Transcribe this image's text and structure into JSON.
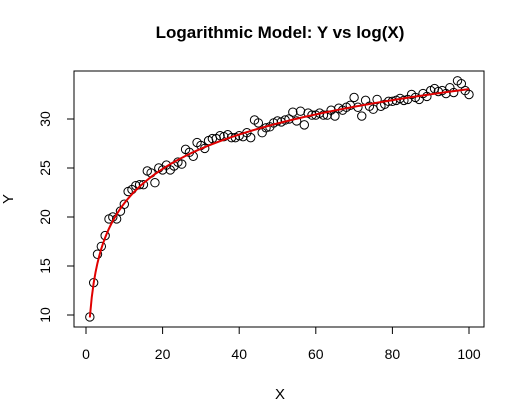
{
  "chart_data": {
    "type": "scatter",
    "title": "Logarithmic Model: Y vs log(X)",
    "xlabel": "X",
    "ylabel": "Y",
    "xlim": [
      0,
      100
    ],
    "ylim": [
      10,
      34
    ],
    "x_ticks": [
      0,
      20,
      40,
      60,
      80,
      100
    ],
    "y_ticks": [
      10,
      15,
      20,
      25,
      30
    ],
    "grid": false,
    "legend": "none",
    "series": [
      {
        "marker": "open-circle",
        "color": "#000000",
        "x": [
          1,
          2,
          3,
          4,
          5,
          6,
          7,
          8,
          9,
          10,
          11,
          12,
          13,
          14,
          15,
          16,
          17,
          18,
          19,
          20,
          21,
          22,
          23,
          24,
          25,
          26,
          27,
          28,
          29,
          30,
          31,
          32,
          33,
          34,
          35,
          36,
          37,
          38,
          39,
          40,
          41,
          42,
          43,
          44,
          45,
          46,
          47,
          48,
          49,
          50,
          51,
          52,
          53,
          54,
          55,
          56,
          57,
          58,
          59,
          60,
          61,
          62,
          63,
          64,
          65,
          66,
          67,
          68,
          69,
          70,
          71,
          72,
          73,
          74,
          75,
          76,
          77,
          78,
          79,
          80,
          81,
          82,
          83,
          84,
          85,
          86,
          87,
          88,
          89,
          90,
          91,
          92,
          93,
          94,
          95,
          96,
          97,
          98,
          99,
          100
        ],
        "y": [
          9.8,
          13.3,
          16.2,
          17.0,
          18.1,
          19.8,
          20.0,
          19.8,
          20.6,
          21.3,
          22.6,
          22.8,
          23.2,
          23.3,
          23.3,
          24.7,
          24.5,
          23.5,
          25.0,
          24.8,
          25.3,
          24.8,
          25.2,
          25.6,
          25.4,
          26.9,
          26.6,
          26.2,
          27.6,
          27.3,
          27.0,
          27.8,
          28.0,
          28.0,
          28.3,
          28.2,
          28.4,
          28.1,
          28.1,
          28.3,
          28.2,
          28.6,
          28.1,
          29.9,
          29.6,
          28.6,
          29.1,
          29.2,
          29.6,
          29.8,
          29.7,
          29.9,
          30.0,
          30.7,
          29.8,
          30.8,
          29.4,
          30.6,
          30.4,
          30.4,
          30.6,
          30.4,
          30.4,
          30.9,
          30.3,
          31.1,
          30.9,
          31.2,
          31.4,
          32.2,
          31.2,
          30.3,
          31.9,
          31.3,
          31.0,
          32.0,
          31.3,
          31.5,
          31.8,
          31.8,
          31.9,
          32.1,
          31.9,
          32.0,
          32.5,
          32.2,
          32.0,
          32.6,
          32.3,
          32.9,
          33.1,
          32.8,
          32.9,
          32.6,
          33.2,
          32.7,
          33.9,
          33.6,
          32.9,
          32.5
        ]
      },
      {
        "marker": "line",
        "color": "#e00000",
        "fit": {
          "intercept": 9.75,
          "slope_ln_x": 5.06
        }
      }
    ]
  }
}
